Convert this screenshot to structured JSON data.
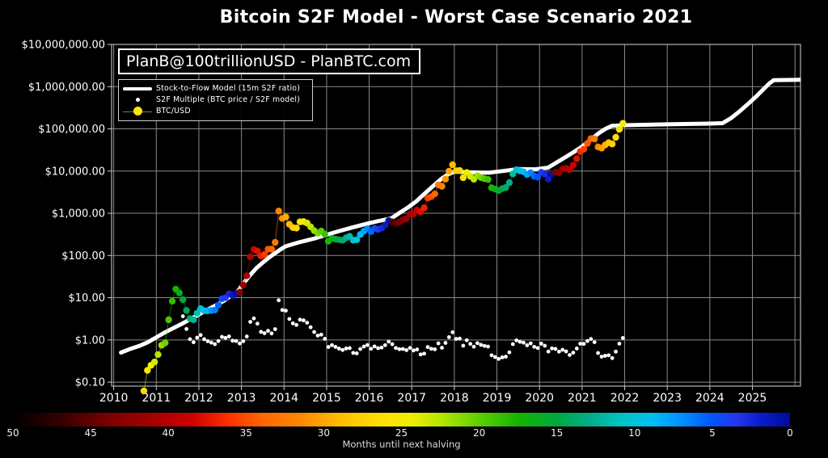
{
  "title": "Bitcoin S2F Model - Worst Case Scenario 2021",
  "watermark": "PlanB@100trillionUSD - PlanBTC.com",
  "legend": {
    "model_label": "Stock-to-Flow Model (15m S2F ratio)",
    "multiple_label": "S2F Multiple (BTC price / S2F model)",
    "btc_label": "BTC/USD"
  },
  "colorbar": {
    "label": "Months until next halving",
    "ticks": [
      50,
      45,
      40,
      35,
      30,
      25,
      20,
      15,
      10,
      5,
      0
    ],
    "max": 50,
    "min": 0,
    "stops": [
      [
        50,
        "#000000"
      ],
      [
        47,
        "#330000"
      ],
      [
        44,
        "#770000"
      ],
      [
        41,
        "#a60000"
      ],
      [
        38.5,
        "#cc0000"
      ],
      [
        36,
        "#ff3300"
      ],
      [
        34,
        "#ff6600"
      ],
      [
        31.5,
        "#ff8800"
      ],
      [
        29,
        "#ffbb00"
      ],
      [
        26.5,
        "#ffdd00"
      ],
      [
        24.5,
        "#f2ee00"
      ],
      [
        22.5,
        "#b5e600"
      ],
      [
        20,
        "#5ecf00"
      ],
      [
        17.5,
        "#14b400"
      ],
      [
        15,
        "#00a840"
      ],
      [
        13,
        "#00ad85"
      ],
      [
        11,
        "#00c2c2"
      ],
      [
        9,
        "#00c0f0"
      ],
      [
        7,
        "#0090ff"
      ],
      [
        5,
        "#0055ff"
      ],
      [
        3.5,
        "#2438ee"
      ],
      [
        2,
        "#0a1ecc"
      ],
      [
        0,
        "#000a99"
      ]
    ]
  },
  "chart_data": {
    "type": "line",
    "title": "Bitcoin S2F Model - Worst Case Scenario 2021",
    "xlabel": "",
    "ylabel": "",
    "y_scale": "log",
    "x_range": [
      2009.95,
      2026.13
    ],
    "y_range": [
      0.0805,
      10000000
    ],
    "x_ticks": [
      2010,
      2011,
      2012,
      2013,
      2014,
      2015,
      2016,
      2017,
      2018,
      2019,
      2020,
      2021,
      2022,
      2023,
      2024,
      2025
    ],
    "x_gridlines": [
      2010,
      2011,
      2012,
      2013,
      2014,
      2015,
      2016,
      2017,
      2018,
      2019,
      2020,
      2021,
      2022,
      2023,
      2024,
      2025,
      2026
    ],
    "y_ticks": [
      {
        "v": 10000000,
        "label": "$10,000,000.00"
      },
      {
        "v": 1000000,
        "label": "$1,000,000.00"
      },
      {
        "v": 100000,
        "label": "$100,000.00"
      },
      {
        "v": 10000,
        "label": "$10,000.00"
      },
      {
        "v": 1000,
        "label": "$1,000.00"
      },
      {
        "v": 100,
        "label": "$100.00"
      },
      {
        "v": 10,
        "label": "$10.00"
      },
      {
        "v": 1,
        "label": "$1.00"
      },
      {
        "v": 0.1,
        "label": "$0.10"
      }
    ],
    "halvings": [
      2012.913,
      2016.523,
      2020.36,
      2024.0
    ],
    "model_line": {
      "name": "Stock-to-Flow Model (15m S2F ratio)",
      "points": [
        [
          2010.17,
          0.5
        ],
        [
          2010.4,
          0.62
        ],
        [
          2010.6,
          0.72
        ],
        [
          2010.8,
          0.88
        ],
        [
          2011.0,
          1.15
        ],
        [
          2011.2,
          1.5
        ],
        [
          2011.4,
          1.9
        ],
        [
          2011.6,
          2.4
        ],
        [
          2011.8,
          3.1
        ],
        [
          2012.0,
          4.0
        ],
        [
          2012.2,
          5.2
        ],
        [
          2012.4,
          6.6
        ],
        [
          2012.6,
          8.6
        ],
        [
          2012.75,
          11
        ],
        [
          2012.91,
          14
        ],
        [
          2013.05,
          22
        ],
        [
          2013.2,
          34
        ],
        [
          2013.35,
          50
        ],
        [
          2013.5,
          68
        ],
        [
          2013.65,
          90
        ],
        [
          2013.8,
          115
        ],
        [
          2013.92,
          140
        ],
        [
          2014.04,
          165
        ],
        [
          2014.35,
          205
        ],
        [
          2014.7,
          250
        ],
        [
          2015.0,
          310
        ],
        [
          2015.3,
          380
        ],
        [
          2015.6,
          460
        ],
        [
          2015.9,
          550
        ],
        [
          2016.2,
          650
        ],
        [
          2016.52,
          760
        ],
        [
          2016.7,
          1000
        ],
        [
          2016.9,
          1350
        ],
        [
          2017.1,
          1900
        ],
        [
          2017.3,
          2900
        ],
        [
          2017.5,
          4400
        ],
        [
          2017.7,
          6600
        ],
        [
          2017.85,
          8300
        ],
        [
          2018.0,
          9700
        ],
        [
          2018.4,
          9300
        ],
        [
          2018.8,
          9100
        ],
        [
          2019.2,
          10200
        ],
        [
          2019.5,
          11200
        ],
        [
          2019.9,
          11000
        ],
        [
          2020.2,
          12000
        ],
        [
          2020.4,
          16000
        ],
        [
          2020.6,
          21000
        ],
        [
          2020.8,
          28000
        ],
        [
          2021.0,
          38000
        ],
        [
          2021.2,
          55000
        ],
        [
          2021.4,
          80000
        ],
        [
          2021.55,
          100000
        ],
        [
          2021.7,
          118000
        ],
        [
          2022.0,
          122000
        ],
        [
          2023.0,
          128000
        ],
        [
          2024.0,
          133000
        ],
        [
          2024.3,
          136000
        ],
        [
          2024.5,
          180000
        ],
        [
          2024.7,
          260000
        ],
        [
          2024.9,
          390000
        ],
        [
          2025.1,
          600000
        ],
        [
          2025.25,
          850000
        ],
        [
          2025.4,
          1200000
        ],
        [
          2025.5,
          1420000
        ],
        [
          2026.13,
          1450000
        ]
      ]
    },
    "btc_usd": {
      "name": "BTC/USD",
      "start": [
        2010,
        9
      ],
      "monthly_prices": [
        0.062,
        0.19,
        0.25,
        0.3,
        0.45,
        0.75,
        0.85,
        3.0,
        8.3,
        16,
        13,
        9,
        5,
        3.2,
        3.0,
        4.3,
        5.5,
        4.9,
        4.9,
        5.0,
        5.1,
        6.7,
        9.4,
        10.0,
        12.4,
        11.2,
        12.5,
        13.5,
        20,
        33,
        93,
        139,
        128,
        97,
        106,
        141,
        141,
        204,
        1130,
        755,
        816,
        550,
        458,
        446,
        627,
        635,
        585,
        478,
        387,
        338,
        378,
        320,
        217,
        254,
        244,
        236,
        230,
        263,
        284,
        230,
        236,
        314,
        377,
        430,
        368,
        437,
        416,
        448,
        531,
        673,
        624,
        575,
        610,
        700,
        745,
        964,
        970,
        1190,
        1080,
        1350,
        2300,
        2480,
        2875,
        4700,
        4360,
        6450,
        9900,
        14100,
        10200,
        10300,
        6940,
        9240,
        7500,
        6400,
        7750,
        7010,
        6600,
        6340,
        4020,
        3740,
        3460,
        3850,
        4100,
        5320,
        8560,
        10800,
        10100,
        9600,
        8280,
        9150,
        7560,
        7190,
        9350,
        8550,
        6440,
        8620,
        9450,
        9140,
        11320,
        11650,
        10780,
        13800,
        19700,
        29000,
        33100,
        45200,
        58800,
        57750,
        37300,
        35000,
        41500,
        47100,
        43800,
        63000,
        98000,
        135000
      ]
    },
    "s2f_multiple": {
      "name": "S2F Multiple (BTC price / S2F model)",
      "definition": "BTC price divided by S2F model value",
      "start": [
        2011,
        8
      ]
    }
  }
}
